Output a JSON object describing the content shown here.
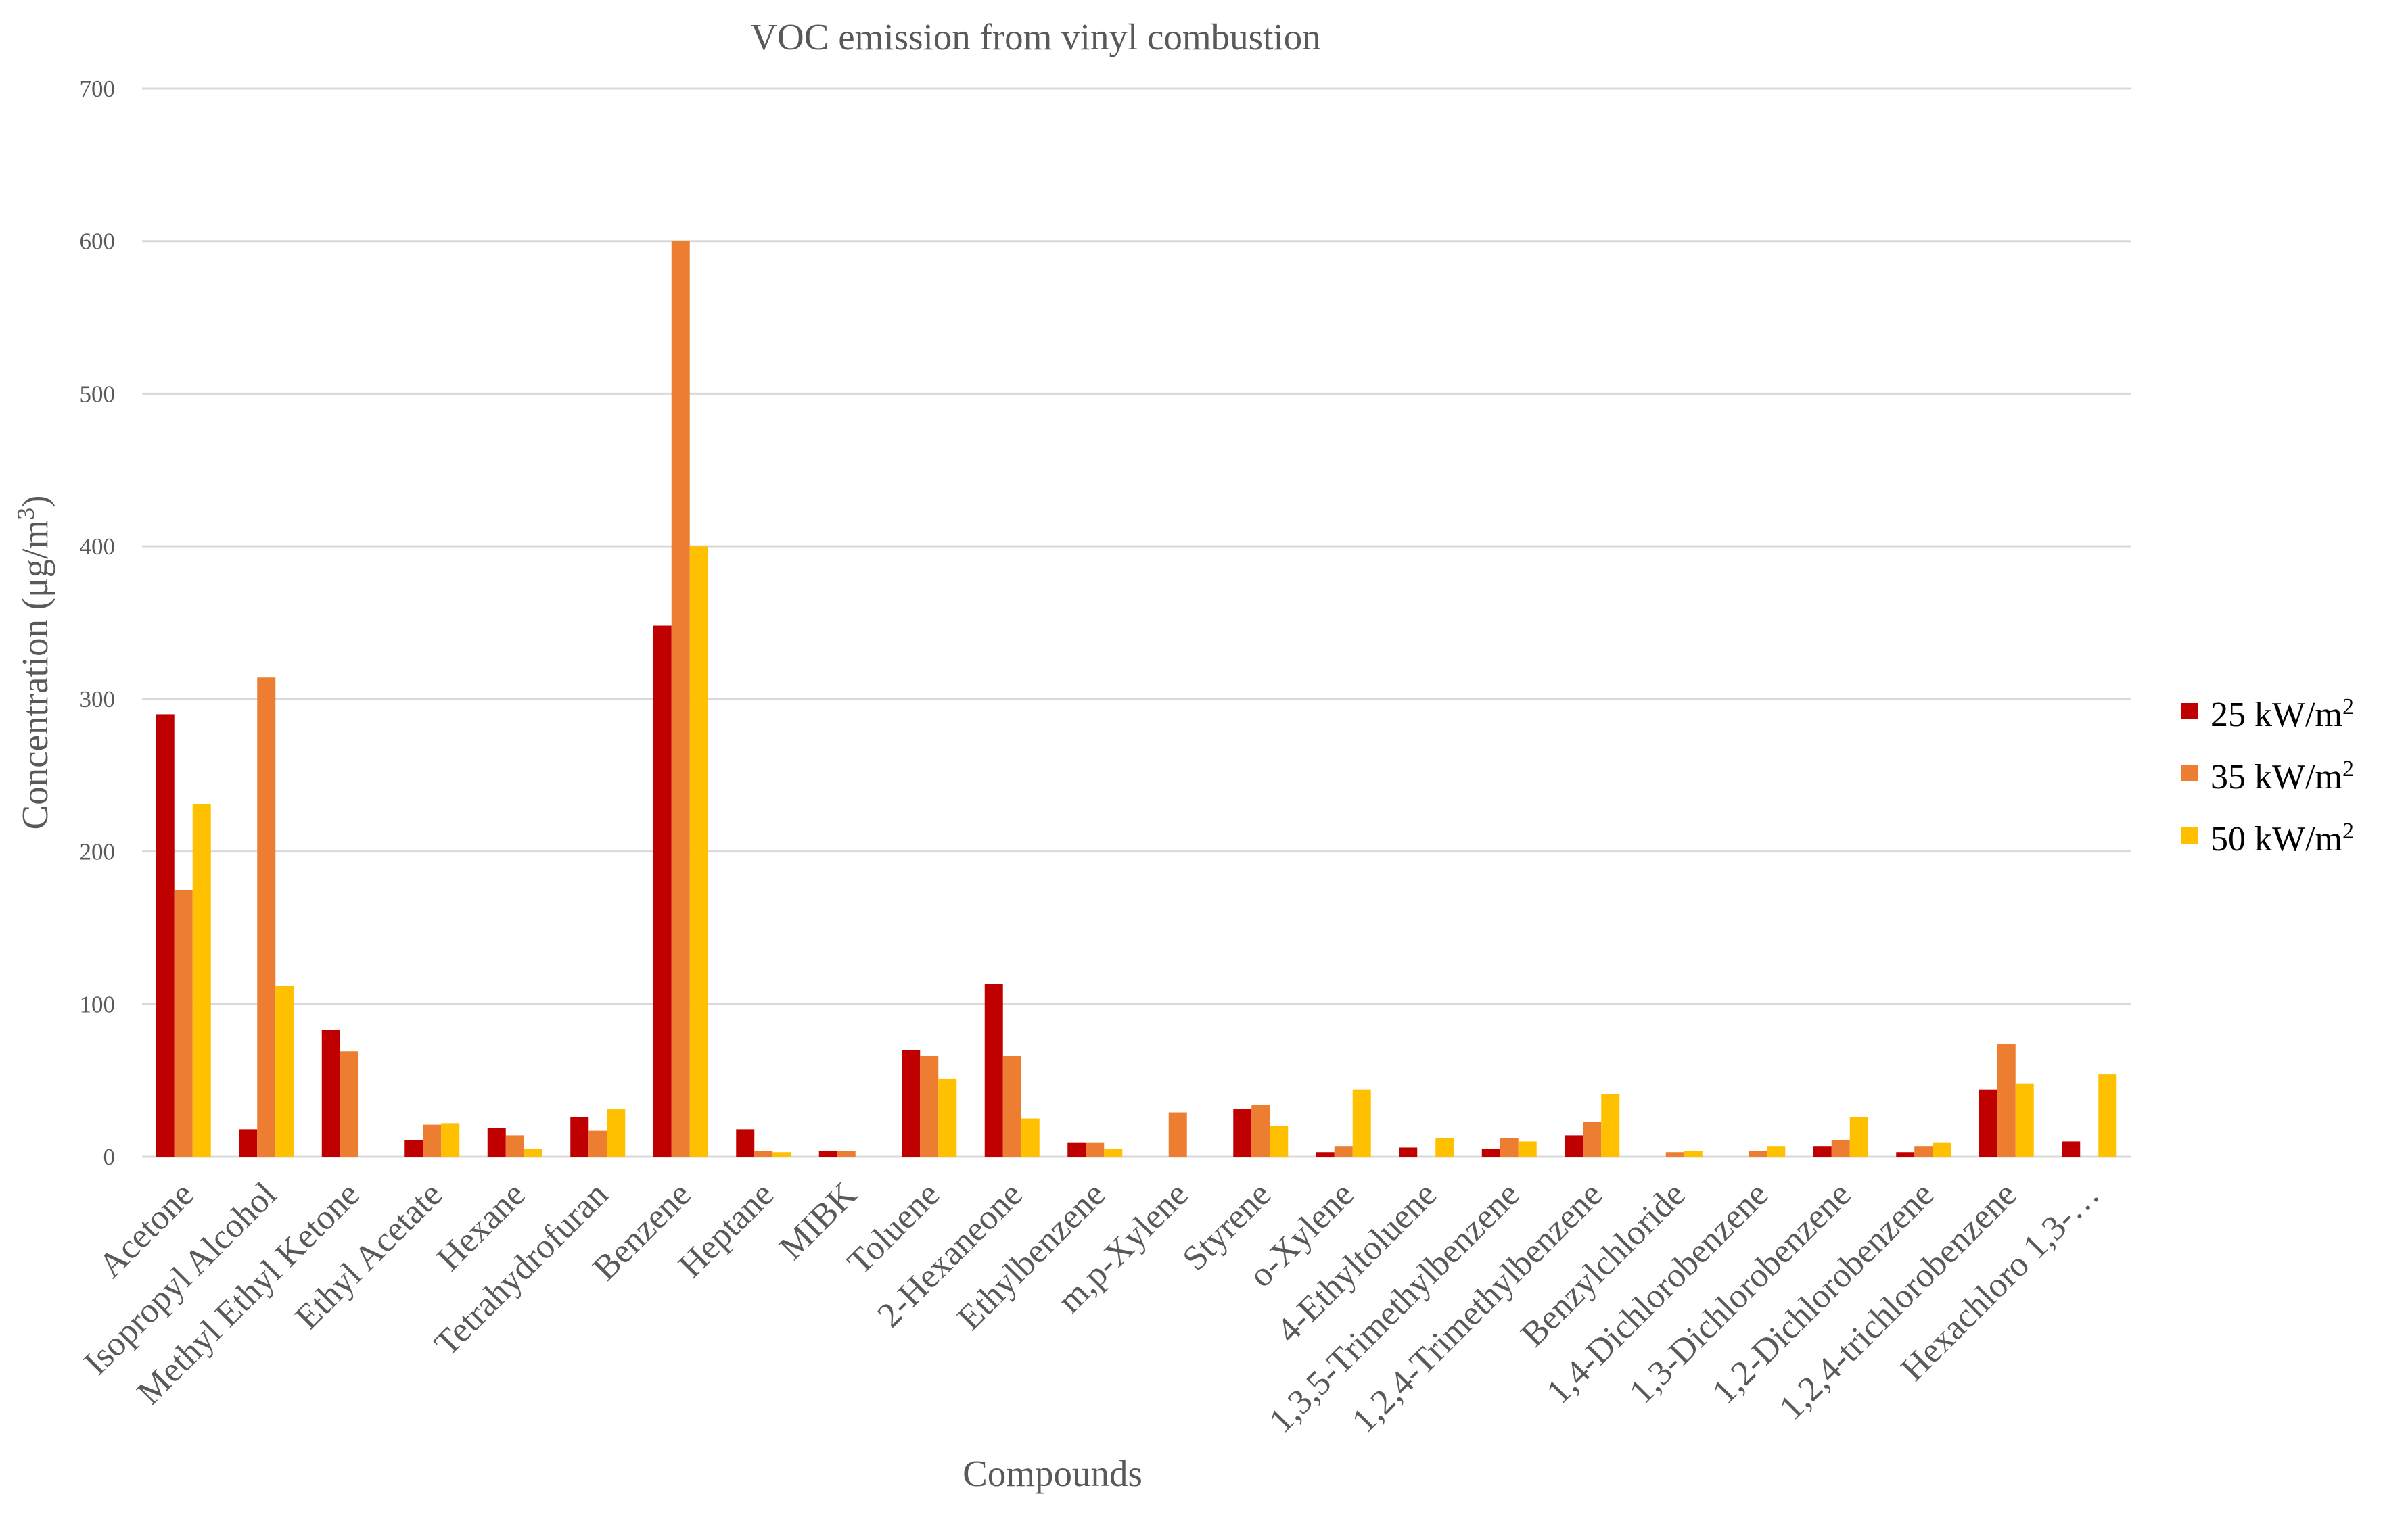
{
  "chart_data": {
    "type": "bar",
    "title": "VOC emission from vinyl combustion",
    "xlabel": "Compounds",
    "ylabel_main": "Concentration (μg/m",
    "ylabel_sup": "3",
    "ylabel_end": ")",
    "ylim": [
      0,
      700
    ],
    "ytick_values": [
      0,
      100,
      200,
      300,
      400,
      500,
      600,
      700
    ],
    "ytick_labels": [
      "0",
      "100",
      "200",
      "300",
      "400",
      "500",
      "600",
      "700"
    ],
    "grid": true,
    "legend_position": "right",
    "categories": [
      "Acetone",
      "Isopropyl Alcohol",
      "Methyl Ethyl Ketone",
      "Ethyl Acetate",
      "Hexane",
      "Tetrahydrofuran",
      "Benzene",
      "Heptane",
      "MIBK",
      "Toluene",
      "2-Hexaneone",
      "Ethylbenzene",
      "m,p-Xylene",
      "Styrene",
      "o-Xylene",
      "4-Ethyltoluene",
      "1,3,5-Trimethylbenzene",
      "1,2,4-Trimethylbenzene",
      "Benzylchloride",
      "1,4-Dichlorobenzene",
      "1,3-Dichlorobenzene",
      "1,2-Dichlorobenzene",
      "1,2,4-trichlorobenzene",
      "Hexachloro 1,3-…"
    ],
    "series": [
      {
        "name": "25 kW/m",
        "name_sup": "2",
        "color": "#c00000",
        "values": [
          290,
          18,
          83,
          11,
          19,
          26,
          348,
          18,
          4,
          70,
          113,
          9,
          0,
          31,
          3,
          6,
          5,
          14,
          0,
          0,
          7,
          3,
          44,
          10
        ]
      },
      {
        "name": "35 kW/m",
        "name_sup": "2",
        "color": "#ed7d31",
        "values": [
          175,
          314,
          69,
          21,
          14,
          17,
          600,
          4,
          4,
          66,
          66,
          9,
          29,
          34,
          7,
          0,
          12,
          23,
          3,
          4,
          11,
          7,
          74,
          0
        ]
      },
      {
        "name": "50 kW/m",
        "name_sup": "2",
        "color": "#ffc000",
        "values": [
          231,
          112,
          0,
          22,
          5,
          31,
          400,
          3,
          0,
          51,
          25,
          5,
          0,
          20,
          44,
          12,
          10,
          41,
          4,
          7,
          26,
          9,
          48,
          54
        ]
      }
    ]
  }
}
